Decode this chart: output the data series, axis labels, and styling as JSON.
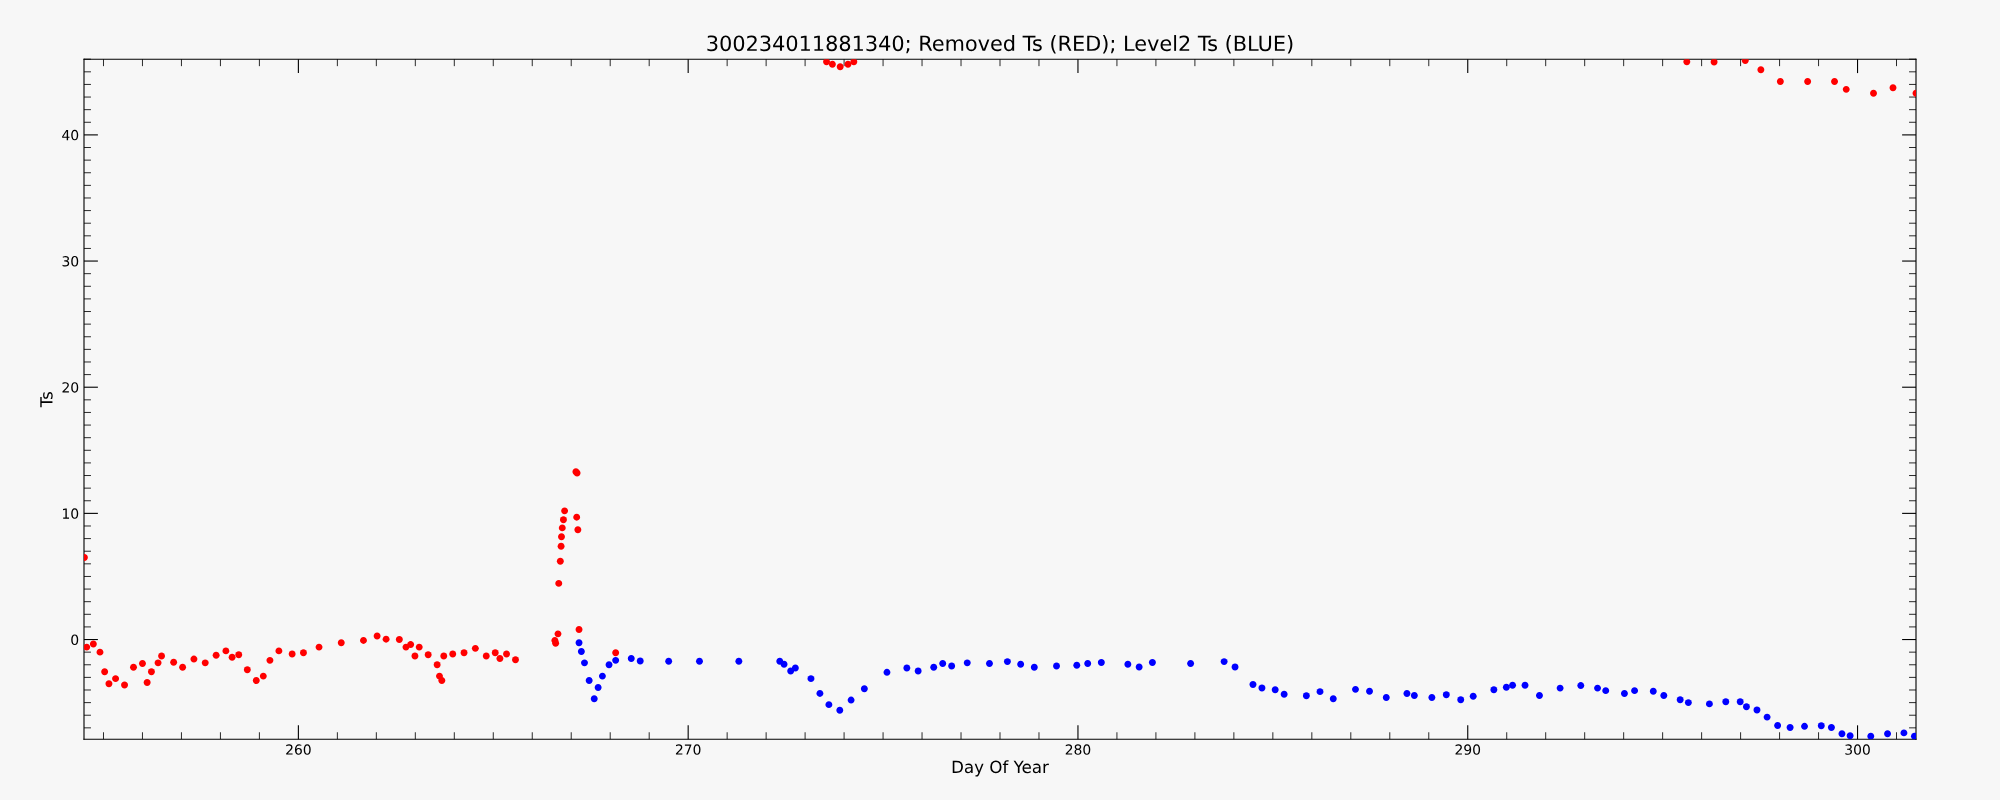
{
  "chart_data": {
    "type": "scatter",
    "title": "300234011881340; Removed Ts (RED); Level2 Ts (BLUE)",
    "xlabel": "Day Of Year",
    "ylabel": "Ts",
    "xlim": [
      254.5,
      301.5
    ],
    "ylim": [
      -7.9,
      46
    ],
    "xticks": [
      {
        "value": 255,
        "label": null
      },
      {
        "value": 256,
        "label": null
      },
      {
        "value": 257,
        "label": null
      },
      {
        "value": 258,
        "label": null
      },
      {
        "value": 259,
        "label": null
      },
      260,
      {
        "value": 261,
        "label": null
      },
      {
        "value": 262,
        "label": null
      },
      {
        "value": 263,
        "label": null
      },
      {
        "value": 264,
        "label": null
      },
      {
        "value": 265,
        "label": null
      },
      {
        "value": 266,
        "label": null
      },
      {
        "value": 267,
        "label": null
      },
      {
        "value": 268,
        "label": null
      },
      {
        "value": 269,
        "label": null
      },
      270,
      {
        "value": 271,
        "label": null
      },
      {
        "value": 272,
        "label": null
      },
      {
        "value": 273,
        "label": null
      },
      {
        "value": 274,
        "label": null
      },
      {
        "value": 275,
        "label": null
      },
      {
        "value": 276,
        "label": null
      },
      {
        "value": 277,
        "label": null
      },
      {
        "value": 278,
        "label": null
      },
      {
        "value": 279,
        "label": null
      },
      280,
      {
        "value": 281,
        "label": null
      },
      {
        "value": 282,
        "label": null
      },
      {
        "value": 283,
        "label": null
      },
      {
        "value": 284,
        "label": null
      },
      {
        "value": 285,
        "label": null
      },
      {
        "value": 286,
        "label": null
      },
      {
        "value": 287,
        "label": null
      },
      {
        "value": 288,
        "label": null
      },
      {
        "value": 289,
        "label": null
      },
      290,
      {
        "value": 291,
        "label": null
      },
      {
        "value": 292,
        "label": null
      },
      {
        "value": 293,
        "label": null
      },
      {
        "value": 294,
        "label": null
      },
      {
        "value": 295,
        "label": null
      },
      {
        "value": 296,
        "label": null
      },
      {
        "value": 297,
        "label": null
      },
      {
        "value": 298,
        "label": null
      },
      {
        "value": 299,
        "label": null
      },
      300,
      {
        "value": 301,
        "label": null
      }
    ],
    "yticks": [
      {
        "value": -7,
        "label": null
      },
      {
        "value": -6,
        "label": null
      },
      {
        "value": -5,
        "label": null
      },
      {
        "value": -4,
        "label": null
      },
      {
        "value": -3,
        "label": null
      },
      {
        "value": -2,
        "label": null
      },
      {
        "value": -1,
        "label": null
      },
      0,
      {
        "value": 1,
        "label": null
      },
      {
        "value": 2,
        "label": null
      },
      {
        "value": 3,
        "label": null
      },
      {
        "value": 4,
        "label": null
      },
      {
        "value": 5,
        "label": null
      },
      {
        "value": 6,
        "label": null
      },
      {
        "value": 7,
        "label": null
      },
      {
        "value": 8,
        "label": null
      },
      {
        "value": 9,
        "label": null
      },
      10,
      {
        "value": 11,
        "label": null
      },
      {
        "value": 12,
        "label": null
      },
      {
        "value": 13,
        "label": null
      },
      {
        "value": 14,
        "label": null
      },
      {
        "value": 15,
        "label": null
      },
      {
        "value": 16,
        "label": null
      },
      {
        "value": 17,
        "label": null
      },
      {
        "value": 18,
        "label": null
      },
      {
        "value": 19,
        "label": null
      },
      20,
      {
        "value": 21,
        "label": null
      },
      {
        "value": 22,
        "label": null
      },
      {
        "value": 23,
        "label": null
      },
      {
        "value": 24,
        "label": null
      },
      {
        "value": 25,
        "label": null
      },
      {
        "value": 26,
        "label": null
      },
      {
        "value": 27,
        "label": null
      },
      {
        "value": 28,
        "label": null
      },
      {
        "value": 29,
        "label": null
      },
      30,
      {
        "value": 31,
        "label": null
      },
      {
        "value": 32,
        "label": null
      },
      {
        "value": 33,
        "label": null
      },
      {
        "value": 34,
        "label": null
      },
      {
        "value": 35,
        "label": null
      },
      {
        "value": 36,
        "label": null
      },
      {
        "value": 37,
        "label": null
      },
      {
        "value": 38,
        "label": null
      },
      {
        "value": 39,
        "label": null
      },
      40,
      {
        "value": 41,
        "label": null
      },
      {
        "value": 42,
        "label": null
      },
      {
        "value": 43,
        "label": null
      },
      {
        "value": 44,
        "label": null
      },
      {
        "value": 45,
        "label": null
      },
      {
        "value": 46,
        "label": null
      }
    ],
    "grid": false,
    "legend": false,
    "marker": "circle",
    "series": [
      {
        "color": "#ff0000",
        "x": [
          254.51,
          254.57,
          254.74,
          254.91,
          255.03,
          255.14,
          255.31,
          255.54,
          255.77,
          256.0,
          256.12,
          256.23,
          256.4,
          256.49,
          256.8,
          257.03,
          257.32,
          257.61,
          257.89,
          258.14,
          258.3,
          258.47,
          258.69,
          258.92,
          259.1,
          259.27,
          259.5,
          259.84,
          260.13,
          260.53,
          261.1,
          261.67,
          262.02,
          262.25,
          262.59,
          262.76,
          262.88,
          262.99,
          263.1,
          263.33,
          263.56,
          263.62,
          263.68,
          263.73,
          263.96,
          264.25,
          264.54,
          264.82,
          265.05,
          265.17,
          265.34,
          265.57,
          266.58,
          266.6,
          266.66,
          266.68,
          266.72,
          266.74,
          266.75,
          266.77,
          266.8,
          266.83,
          267.12,
          267.15,
          267.14,
          267.17,
          267.2,
          268.14,
          273.55,
          273.7,
          273.9,
          274.1,
          274.25,
          295.62,
          296.32,
          297.12,
          297.52,
          298.02,
          298.72,
          299.41,
          299.71,
          300.41,
          300.91,
          301.5
        ],
        "values": [
          6.5,
          -0.6,
          -0.35,
          -1.0,
          -2.55,
          -3.5,
          -3.1,
          -3.6,
          -2.2,
          -1.9,
          -3.4,
          -2.55,
          -1.85,
          -1.3,
          -1.8,
          -2.2,
          -1.55,
          -1.85,
          -1.25,
          -0.9,
          -1.4,
          -1.2,
          -2.4,
          -3.25,
          -2.9,
          -1.65,
          -0.9,
          -1.15,
          -1.05,
          -0.6,
          -0.25,
          -0.07,
          0.28,
          0.03,
          0.0,
          -0.6,
          -0.4,
          -1.3,
          -0.6,
          -1.2,
          -2.0,
          -2.9,
          -3.25,
          -1.3,
          -1.15,
          -1.05,
          -0.7,
          -1.3,
          -1.05,
          -1.5,
          -1.15,
          -1.6,
          -0.07,
          -0.3,
          0.45,
          4.45,
          6.2,
          7.4,
          8.15,
          8.85,
          9.5,
          10.2,
          13.3,
          13.2,
          9.7,
          8.7,
          0.8,
          -1.05,
          45.8,
          45.6,
          45.4,
          45.6,
          45.8,
          45.8,
          45.78,
          45.9,
          45.16,
          44.23,
          44.23,
          44.23,
          43.61,
          43.3,
          43.74,
          43.3
        ]
      },
      {
        "color": "#0000ff",
        "x": [
          267.2,
          267.26,
          267.34,
          267.46,
          267.59,
          267.69,
          267.8,
          267.97,
          268.14,
          268.54,
          268.77,
          269.5,
          270.29,
          271.3,
          272.35,
          272.46,
          272.63,
          272.75,
          273.15,
          273.38,
          273.61,
          273.89,
          274.18,
          274.52,
          275.1,
          275.61,
          275.9,
          276.3,
          276.53,
          276.76,
          277.16,
          277.73,
          278.19,
          278.53,
          278.88,
          279.45,
          279.97,
          280.25,
          280.6,
          281.28,
          281.57,
          281.91,
          282.89,
          283.75,
          284.03,
          284.49,
          284.72,
          285.06,
          285.29,
          285.86,
          286.21,
          286.55,
          287.12,
          287.48,
          287.91,
          288.44,
          288.63,
          289.08,
          289.45,
          289.82,
          290.14,
          290.67,
          290.99,
          291.15,
          291.47,
          291.84,
          292.37,
          292.9,
          293.33,
          293.54,
          294.02,
          294.28,
          294.76,
          295.03,
          295.45,
          295.66,
          296.2,
          296.62,
          296.99,
          297.15,
          297.42,
          297.68,
          297.95,
          298.27,
          298.64,
          299.07,
          299.33,
          299.6,
          299.81,
          300.34,
          300.77,
          301.19,
          301.46
        ],
        "values": [
          -0.25,
          -0.95,
          -1.85,
          -3.25,
          -4.7,
          -3.8,
          -2.9,
          -2.0,
          -1.65,
          -1.5,
          -1.7,
          -1.72,
          -1.72,
          -1.72,
          -1.72,
          -1.96,
          -2.5,
          -2.25,
          -3.1,
          -4.27,
          -5.16,
          -5.6,
          -4.8,
          -3.9,
          -2.6,
          -2.25,
          -2.5,
          -2.2,
          -1.9,
          -2.1,
          -1.85,
          -1.9,
          -1.75,
          -1.96,
          -2.2,
          -2.1,
          -2.04,
          -1.9,
          -1.82,
          -1.96,
          -2.18,
          -1.82,
          -1.9,
          -1.75,
          -2.18,
          -3.57,
          -3.84,
          -3.98,
          -4.34,
          -4.45,
          -4.13,
          -4.7,
          -3.95,
          -4.1,
          -4.6,
          -4.28,
          -4.44,
          -4.6,
          -4.38,
          -4.77,
          -4.5,
          -3.98,
          -3.78,
          -3.62,
          -3.62,
          -4.44,
          -3.85,
          -3.65,
          -3.85,
          -4.05,
          -4.28,
          -4.05,
          -4.1,
          -4.44,
          -4.77,
          -5.0,
          -5.1,
          -4.93,
          -4.93,
          -5.33,
          -5.59,
          -6.15,
          -6.81,
          -6.97,
          -6.88,
          -6.84,
          -6.97,
          -7.47,
          -7.63,
          -7.66,
          -7.47,
          -7.4,
          -7.66
        ]
      }
    ]
  }
}
